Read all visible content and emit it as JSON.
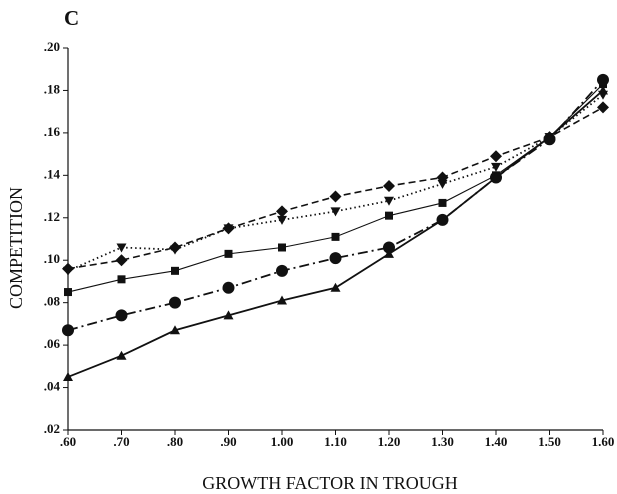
{
  "chart_data": {
    "type": "line",
    "panel_label": "C",
    "x_label": "GROWTH FACTOR IN TROUGH",
    "y_label": "COMPETITION",
    "x": [
      0.6,
      0.7,
      0.8,
      0.9,
      1.0,
      1.1,
      1.2,
      1.3,
      1.4,
      1.5,
      1.6
    ],
    "series": [
      {
        "color": "#111111",
        "marker": "diamond",
        "dash": "dashed",
        "linewidth": 1.6,
        "values": [
          0.096,
          0.1,
          0.106,
          0.115,
          0.123,
          0.13,
          0.135,
          0.139,
          0.149,
          0.158,
          0.172
        ]
      },
      {
        "color": "#111111",
        "marker": "triangle-down",
        "dash": "dotted",
        "linewidth": 1.8,
        "values": [
          0.095,
          0.106,
          0.105,
          0.115,
          0.119,
          0.123,
          0.128,
          0.136,
          0.144,
          0.158,
          0.178
        ]
      },
      {
        "color": "#111111",
        "marker": "square",
        "dash": "solid",
        "linewidth": 1.1,
        "values": [
          0.085,
          0.091,
          0.095,
          0.103,
          0.106,
          0.111,
          0.121,
          0.127,
          0.14,
          0.158,
          0.183
        ]
      },
      {
        "color": "#111111",
        "marker": "circle",
        "dash": "dashdot",
        "linewidth": 1.8,
        "values": [
          0.067,
          0.074,
          0.08,
          0.087,
          0.095,
          0.101,
          0.106,
          0.119,
          0.139,
          0.157,
          0.185
        ]
      },
      {
        "color": "#111111",
        "marker": "triangle",
        "dash": "solid",
        "linewidth": 1.8,
        "values": [
          0.045,
          0.055,
          0.067,
          0.074,
          0.081,
          0.087,
          0.103,
          0.119,
          0.139,
          0.158,
          0.18
        ]
      }
    ],
    "xlim": [
      0.6,
      1.6
    ],
    "xticks": [
      {
        "value": 0.6,
        "label": ".60"
      },
      {
        "value": 0.7,
        "label": ".70"
      },
      {
        "value": 0.8,
        "label": ".80"
      },
      {
        "value": 0.9,
        "label": ".90"
      },
      {
        "value": 1.0,
        "label": "1.00"
      },
      {
        "value": 1.1,
        "label": "1.10"
      },
      {
        "value": 1.2,
        "label": "1.20"
      },
      {
        "value": 1.3,
        "label": "1.30"
      },
      {
        "value": 1.4,
        "label": "1.40"
      },
      {
        "value": 1.5,
        "label": "1.50"
      },
      {
        "value": 1.6,
        "label": "1.60"
      }
    ],
    "ylim": [
      0.02,
      0.2
    ],
    "yticks": [
      {
        "value": 0.02,
        "label": ".02"
      },
      {
        "value": 0.04,
        "label": ".04"
      },
      {
        "value": 0.06,
        "label": ".06"
      },
      {
        "value": 0.08,
        "label": ".08"
      },
      {
        "value": 0.1,
        "label": ".10"
      },
      {
        "value": 0.12,
        "label": ".12"
      },
      {
        "value": 0.14,
        "label": ".14"
      },
      {
        "value": 0.16,
        "label": ".16"
      },
      {
        "value": 0.18,
        "label": ".18"
      },
      {
        "value": 0.2,
        "label": ".20"
      }
    ],
    "grid": false
  }
}
